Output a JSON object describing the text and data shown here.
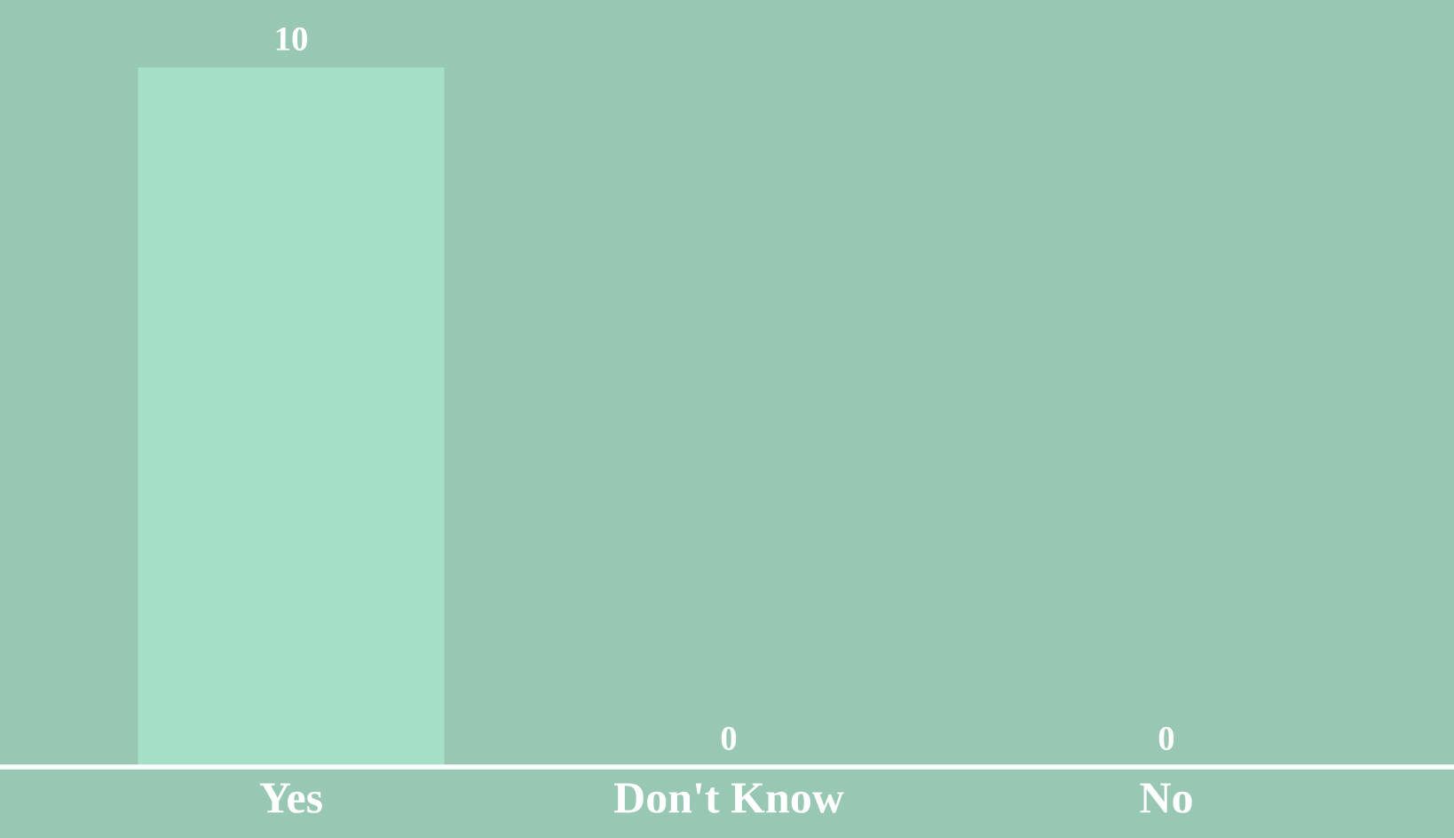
{
  "chart_data": {
    "type": "bar",
    "categories": [
      "Yes",
      "Don't Know",
      "No"
    ],
    "values": [
      10,
      0,
      0
    ],
    "color": "#a6dfc8",
    "data_labels": true,
    "grid": false,
    "legend": false
  }
}
